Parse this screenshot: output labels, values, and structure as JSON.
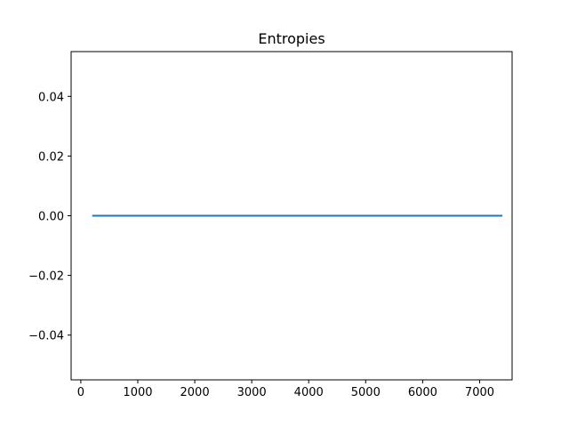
{
  "chart_data": {
    "type": "line",
    "title": "Entropies",
    "xlabel": "",
    "ylabel": "",
    "xlim": [
      -170,
      7570
    ],
    "ylim": [
      -0.055,
      0.055
    ],
    "x_ticks": [
      0,
      1000,
      2000,
      3000,
      4000,
      5000,
      6000,
      7000
    ],
    "x_tick_labels": [
      "0",
      "1000",
      "2000",
      "3000",
      "4000",
      "5000",
      "6000",
      "7000"
    ],
    "y_ticks": [
      0.04,
      0.02,
      0.0,
      -0.02,
      -0.04
    ],
    "y_tick_labels": [
      "0.04",
      "0.02",
      "0.00",
      "−0.02",
      "−0.04"
    ],
    "grid": false,
    "series": [
      {
        "color": "#1f77b4",
        "x": [
          200,
          7400
        ],
        "y": [
          0.0,
          0.0
        ]
      }
    ]
  }
}
